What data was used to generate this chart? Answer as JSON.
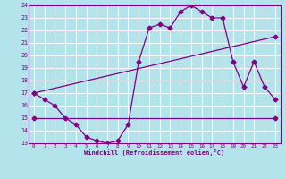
{
  "bg_color": "#b3e4ec",
  "line_color": "#800080",
  "grid_color": "#ffffff",
  "xlabel": "Windchill (Refroidissement éolien,°C)",
  "xlim": [
    -0.5,
    23.5
  ],
  "ylim": [
    13,
    24
  ],
  "xticks": [
    0,
    1,
    2,
    3,
    4,
    5,
    6,
    7,
    8,
    9,
    10,
    11,
    12,
    13,
    14,
    15,
    16,
    17,
    18,
    19,
    20,
    21,
    22,
    23
  ],
  "yticks": [
    13,
    14,
    15,
    16,
    17,
    18,
    19,
    20,
    21,
    22,
    23,
    24
  ],
  "line1_x": [
    0,
    1,
    2,
    3,
    4,
    5,
    6,
    7,
    8,
    9,
    10,
    11,
    12,
    13,
    14,
    15,
    16,
    17,
    18,
    19,
    20,
    21,
    22,
    23
  ],
  "line1_y": [
    17,
    16.5,
    16,
    15,
    14.5,
    13.5,
    13.2,
    13,
    13.2,
    14.5,
    19.5,
    22.2,
    22.5,
    22.2,
    23.5,
    24,
    23.5,
    23,
    23,
    19.5,
    17.5,
    19.5,
    17.5,
    16.5
  ],
  "line2_x": [
    0,
    23
  ],
  "line2_y": [
    17,
    21.5
  ],
  "line3_x": [
    0,
    23
  ],
  "line3_y": [
    15,
    15
  ],
  "marker": "D",
  "markersize": 2.5,
  "lw": 0.9
}
